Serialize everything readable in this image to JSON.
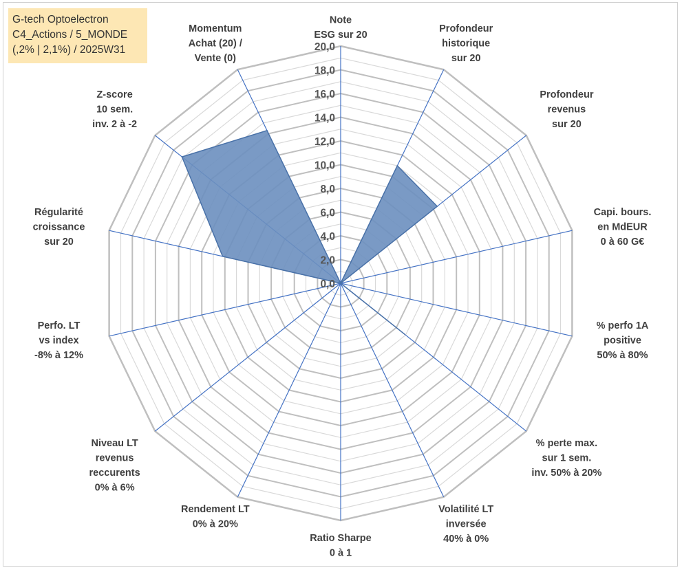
{
  "title_box": {
    "line1": "G-tech Optoelectron",
    "line2": "C4_Actions / 5_MONDE",
    "line3": "(,2% | 2,1%) / 2025W31"
  },
  "chart_data": {
    "type": "radar",
    "rmax": 20,
    "tick_step": 1,
    "tick_labels": [
      "0,0",
      "2,0",
      "4,0",
      "6,0",
      "8,0",
      "10,0",
      "12,0",
      "14,0",
      "16,0",
      "18,0",
      "20,0"
    ],
    "axes": [
      {
        "label": [
          "Note",
          "ESG sur 20"
        ],
        "value": 0
      },
      {
        "label": [
          "Profondeur",
          "historique",
          "sur 20"
        ],
        "value": 11
      },
      {
        "label": [
          "Profondeur",
          "revenus",
          "sur 20"
        ],
        "value": 10.4
      },
      {
        "label": [
          "Capi. bours.",
          "en MdEUR",
          "0 à 60 G€"
        ],
        "value": 0
      },
      {
        "label": [
          "% perfo 1A",
          "positive",
          "50% à 80%"
        ],
        "value": 0
      },
      {
        "label": [
          "% perte max.",
          "sur 1 sem.",
          "inv. 50% à 20%"
        ],
        "value": 6.9
      },
      {
        "label": [
          "Volatilité LT",
          "inversée",
          "40% à 0%"
        ],
        "value": 0
      },
      {
        "label": [
          "Ratio Sharpe",
          "0 à 1"
        ],
        "value": 0
      },
      {
        "label": [
          "Rendement LT",
          "0% à 20%"
        ],
        "value": 0
      },
      {
        "label": [
          "Niveau LT",
          "revenus",
          "reccurents",
          "0% à 6%"
        ],
        "value": 0
      },
      {
        "label": [
          "Perfo. LT",
          "vs index",
          "-8% à 12%"
        ],
        "value": 0
      },
      {
        "label": [
          "Régularité",
          "croissance",
          "sur 20"
        ],
        "value": 10.2
      },
      {
        "label": [
          "Z-score",
          "10 sem.",
          "inv. 2 à -2"
        ],
        "value": 17.1
      },
      {
        "label": [
          "Momentum",
          "Achat (20) /",
          "Vente (0)"
        ],
        "value": 14.3
      }
    ]
  },
  "colors": {
    "fill": "#6b8fbf",
    "fill_stroke": "#4a72a8",
    "spoke": "#4472c4",
    "grid_major": "#bfbfbf",
    "grid_minor": "#d9d9d9",
    "title_bg": "#fde7b4"
  }
}
